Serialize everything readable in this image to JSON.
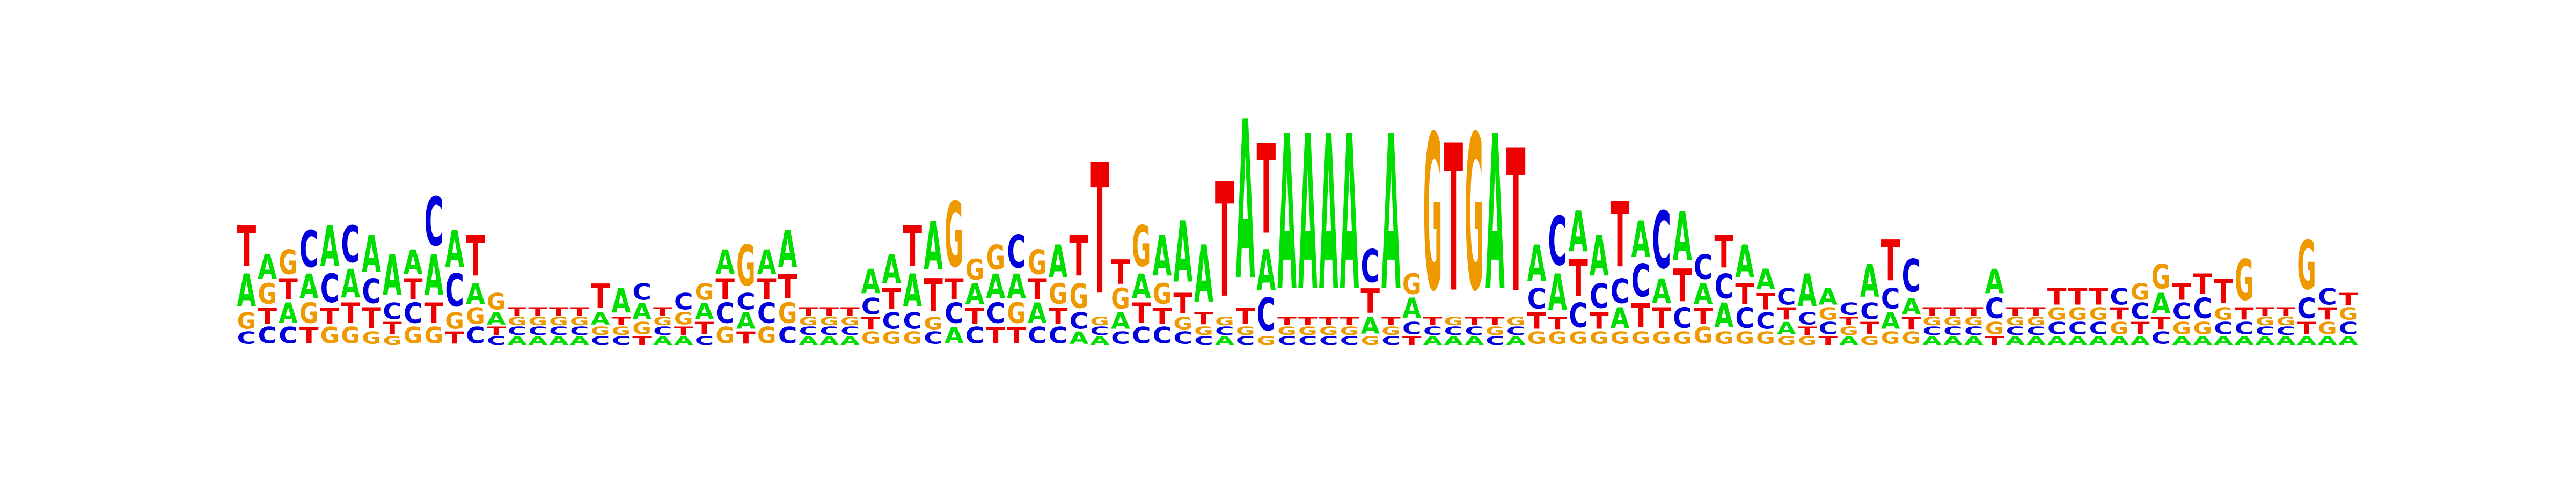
{
  "colors": {
    "A": "#00dd00",
    "C": "#0000dd",
    "G": "#ee9900",
    "T": "#ee0000"
  },
  "positions": [
    [
      [
        "A",
        0.08
      ],
      [
        "C",
        0.03
      ],
      [
        "G",
        0.04
      ],
      [
        "T",
        0.1
      ]
    ],
    [
      [
        "A",
        0.06
      ],
      [
        "C",
        0.04
      ],
      [
        "G",
        0.05
      ],
      [
        "T",
        0.04
      ]
    ],
    [
      [
        "A",
        0.05
      ],
      [
        "C",
        0.04
      ],
      [
        "G",
        0.06
      ],
      [
        "T",
        0.05
      ]
    ],
    [
      [
        "A",
        0.06
      ],
      [
        "C",
        0.09
      ],
      [
        "G",
        0.05
      ],
      [
        "T",
        0.04
      ]
    ],
    [
      [
        "A",
        0.1
      ],
      [
        "C",
        0.07
      ],
      [
        "G",
        0.04
      ],
      [
        "T",
        0.04
      ]
    ],
    [
      [
        "A",
        0.07
      ],
      [
        "C",
        0.09
      ],
      [
        "G",
        0.04
      ],
      [
        "T",
        0.05
      ]
    ],
    [
      [
        "A",
        0.09
      ],
      [
        "C",
        0.06
      ],
      [
        "G",
        0.03
      ],
      [
        "T",
        0.05
      ]
    ],
    [
      [
        "A",
        0.1
      ],
      [
        "C",
        0.04
      ],
      [
        "G",
        0.02
      ],
      [
        "T",
        0.03
      ]
    ],
    [
      [
        "A",
        0.06
      ],
      [
        "C",
        0.05
      ],
      [
        "G",
        0.04
      ],
      [
        "T",
        0.05
      ]
    ],
    [
      [
        "A",
        0.1
      ],
      [
        "C",
        0.12
      ],
      [
        "G",
        0.04
      ],
      [
        "T",
        0.05
      ]
    ],
    [
      [
        "A",
        0.09
      ],
      [
        "C",
        0.08
      ],
      [
        "G",
        0.04
      ],
      [
        "T",
        0.03
      ]
    ],
    [
      [
        "A",
        0.05
      ],
      [
        "C",
        0.04
      ],
      [
        "G",
        0.04
      ],
      [
        "T",
        0.1
      ]
    ],
    [
      [
        "A",
        0.03
      ],
      [
        "C",
        0.02
      ],
      [
        "G",
        0.04
      ],
      [
        "T",
        0.02
      ]
    ],
    [
      [
        "A",
        0.02
      ],
      [
        "C",
        0.02
      ],
      [
        "G",
        0.02
      ],
      [
        "T",
        0.02
      ]
    ],
    [
      [
        "A",
        0.02
      ],
      [
        "C",
        0.02
      ],
      [
        "G",
        0.02
      ],
      [
        "T",
        0.02
      ]
    ],
    [
      [
        "A",
        0.02
      ],
      [
        "C",
        0.02
      ],
      [
        "G",
        0.02
      ],
      [
        "T",
        0.02
      ]
    ],
    [
      [
        "A",
        0.02
      ],
      [
        "C",
        0.02
      ],
      [
        "G",
        0.02
      ],
      [
        "T",
        0.02
      ]
    ],
    [
      [
        "A",
        0.03
      ],
      [
        "C",
        0.02
      ],
      [
        "G",
        0.02
      ],
      [
        "T",
        0.06
      ]
    ],
    [
      [
        "A",
        0.06
      ],
      [
        "C",
        0.02
      ],
      [
        "G",
        0.02
      ],
      [
        "T",
        0.02
      ]
    ],
    [
      [
        "A",
        0.04
      ],
      [
        "C",
        0.04
      ],
      [
        "G",
        0.03
      ],
      [
        "T",
        0.02
      ]
    ],
    [
      [
        "A",
        0.02
      ],
      [
        "C",
        0.02
      ],
      [
        "G",
        0.02
      ],
      [
        "T",
        0.02
      ]
    ],
    [
      [
        "A",
        0.02
      ],
      [
        "C",
        0.04
      ],
      [
        "G",
        0.03
      ],
      [
        "T",
        0.02
      ]
    ],
    [
      [
        "A",
        0.04
      ],
      [
        "C",
        0.02
      ],
      [
        "G",
        0.04
      ],
      [
        "T",
        0.03
      ]
    ],
    [
      [
        "A",
        0.06
      ],
      [
        "C",
        0.05
      ],
      [
        "G",
        0.04
      ],
      [
        "T",
        0.05
      ]
    ],
    [
      [
        "A",
        0.04
      ],
      [
        "C",
        0.04
      ],
      [
        "G",
        0.1
      ],
      [
        "T",
        0.03
      ]
    ],
    [
      [
        "A",
        0.06
      ],
      [
        "C",
        0.05
      ],
      [
        "G",
        0.04
      ],
      [
        "T",
        0.05
      ]
    ],
    [
      [
        "A",
        0.09
      ],
      [
        "C",
        0.04
      ],
      [
        "G",
        0.05
      ],
      [
        "T",
        0.06
      ]
    ],
    [
      [
        "A",
        0.02
      ],
      [
        "C",
        0.02
      ],
      [
        "G",
        0.02
      ],
      [
        "T",
        0.02
      ]
    ],
    [
      [
        "A",
        0.02
      ],
      [
        "C",
        0.02
      ],
      [
        "G",
        0.02
      ],
      [
        "T",
        0.02
      ]
    ],
    [
      [
        "A",
        0.02
      ],
      [
        "C",
        0.02
      ],
      [
        "G",
        0.02
      ],
      [
        "T",
        0.02
      ]
    ],
    [
      [
        "A",
        0.06
      ],
      [
        "C",
        0.04
      ],
      [
        "G",
        0.03
      ],
      [
        "T",
        0.03
      ]
    ],
    [
      [
        "A",
        0.07
      ],
      [
        "C",
        0.04
      ],
      [
        "G",
        0.03
      ],
      [
        "T",
        0.05
      ]
    ],
    [
      [
        "A",
        0.08
      ],
      [
        "C",
        0.04
      ],
      [
        "G",
        0.03
      ],
      [
        "T",
        0.1
      ]
    ],
    [
      [
        "A",
        0.12
      ],
      [
        "C",
        0.03
      ],
      [
        "G",
        0.03
      ],
      [
        "T",
        0.08
      ]
    ],
    [
      [
        "A",
        0.04
      ],
      [
        "C",
        0.05
      ],
      [
        "G",
        0.16
      ],
      [
        "T",
        0.05
      ]
    ],
    [
      [
        "A",
        0.05
      ],
      [
        "C",
        0.04
      ],
      [
        "G",
        0.05
      ],
      [
        "T",
        0.04
      ]
    ],
    [
      [
        "A",
        0.06
      ],
      [
        "C",
        0.05
      ],
      [
        "G",
        0.06
      ],
      [
        "T",
        0.04
      ]
    ],
    [
      [
        "A",
        0.06
      ],
      [
        "C",
        0.08
      ],
      [
        "G",
        0.05
      ],
      [
        "T",
        0.04
      ]
    ],
    [
      [
        "A",
        0.05
      ],
      [
        "C",
        0.04
      ],
      [
        "G",
        0.06
      ],
      [
        "T",
        0.05
      ]
    ],
    [
      [
        "A",
        0.08
      ],
      [
        "C",
        0.04
      ],
      [
        "G",
        0.05
      ],
      [
        "T",
        0.04
      ]
    ],
    [
      [
        "A",
        0.03
      ],
      [
        "C",
        0.04
      ],
      [
        "G",
        0.06
      ],
      [
        "T",
        0.1
      ]
    ],
    [
      [
        "A",
        0.02
      ],
      [
        "C",
        0.02
      ],
      [
        "G",
        0.02
      ],
      [
        "T",
        0.32
      ]
    ],
    [
      [
        "A",
        0.04
      ],
      [
        "C",
        0.03
      ],
      [
        "G",
        0.05
      ],
      [
        "T",
        0.06
      ]
    ],
    [
      [
        "A",
        0.06
      ],
      [
        "C",
        0.04
      ],
      [
        "G",
        0.1
      ],
      [
        "T",
        0.05
      ]
    ],
    [
      [
        "A",
        0.1
      ],
      [
        "C",
        0.04
      ],
      [
        "G",
        0.05
      ],
      [
        "T",
        0.04
      ]
    ],
    [
      [
        "A",
        0.15
      ],
      [
        "C",
        0.03
      ],
      [
        "G",
        0.03
      ],
      [
        "T",
        0.05
      ]
    ],
    [
      [
        "A",
        0.14
      ],
      [
        "C",
        0.02
      ],
      [
        "G",
        0.02
      ],
      [
        "T",
        0.03
      ]
    ],
    [
      [
        "A",
        0.02
      ],
      [
        "C",
        0.02
      ],
      [
        "G",
        0.02
      ],
      [
        "T",
        0.28
      ]
    ],
    [
      [
        "A",
        0.39
      ],
      [
        "C",
        0.02
      ],
      [
        "G",
        0.02
      ],
      [
        "T",
        0.04
      ]
    ],
    [
      [
        "A",
        0.1
      ],
      [
        "C",
        0.08
      ],
      [
        "G",
        0.02
      ],
      [
        "T",
        0.22
      ]
    ],
    [
      [
        "A",
        0.38
      ],
      [
        "C",
        0.02
      ],
      [
        "G",
        0.02
      ],
      [
        "T",
        0.02
      ]
    ],
    [
      [
        "A",
        0.38
      ],
      [
        "C",
        0.02
      ],
      [
        "G",
        0.02
      ],
      [
        "T",
        0.02
      ]
    ],
    [
      [
        "A",
        0.38
      ],
      [
        "C",
        0.02
      ],
      [
        "G",
        0.02
      ],
      [
        "T",
        0.02
      ]
    ],
    [
      [
        "A",
        0.38
      ],
      [
        "C",
        0.02
      ],
      [
        "G",
        0.02
      ],
      [
        "T",
        0.02
      ]
    ],
    [
      [
        "A",
        0.04
      ],
      [
        "C",
        0.08
      ],
      [
        "G",
        0.02
      ],
      [
        "T",
        0.06
      ]
    ],
    [
      [
        "A",
        0.38
      ],
      [
        "C",
        0.02
      ],
      [
        "G",
        0.02
      ],
      [
        "T",
        0.02
      ]
    ],
    [
      [
        "A",
        0.05
      ],
      [
        "C",
        0.03
      ],
      [
        "G",
        0.05
      ],
      [
        "T",
        0.02
      ]
    ],
    [
      [
        "A",
        0.02
      ],
      [
        "C",
        0.02
      ],
      [
        "G",
        0.38
      ],
      [
        "T",
        0.02
      ]
    ],
    [
      [
        "A",
        0.02
      ],
      [
        "C",
        0.02
      ],
      [
        "G",
        0.02
      ],
      [
        "T",
        0.36
      ]
    ],
    [
      [
        "A",
        0.02
      ],
      [
        "C",
        0.02
      ],
      [
        "G",
        0.38
      ],
      [
        "T",
        0.02
      ]
    ],
    [
      [
        "A",
        0.38
      ],
      [
        "C",
        0.02
      ],
      [
        "G",
        0.02
      ],
      [
        "T",
        0.02
      ]
    ],
    [
      [
        "A",
        0.02
      ],
      [
        "C",
        0.02
      ],
      [
        "G",
        0.02
      ],
      [
        "T",
        0.35
      ]
    ],
    [
      [
        "A",
        0.09
      ],
      [
        "C",
        0.05
      ],
      [
        "G",
        0.03
      ],
      [
        "T",
        0.04
      ]
    ],
    [
      [
        "A",
        0.09
      ],
      [
        "C",
        0.12
      ],
      [
        "G",
        0.03
      ],
      [
        "T",
        0.03
      ]
    ],
    [
      [
        "A",
        0.1
      ],
      [
        "C",
        0.06
      ],
      [
        "G",
        0.03
      ],
      [
        "T",
        0.09
      ]
    ],
    [
      [
        "A",
        0.1
      ],
      [
        "C",
        0.06
      ],
      [
        "G",
        0.03
      ],
      [
        "T",
        0.04
      ]
    ],
    [
      [
        "A",
        0.05
      ],
      [
        "C",
        0.06
      ],
      [
        "G",
        0.03
      ],
      [
        "T",
        0.16
      ]
    ],
    [
      [
        "A",
        0.09
      ],
      [
        "C",
        0.08
      ],
      [
        "G",
        0.03
      ],
      [
        "T",
        0.06
      ]
    ],
    [
      [
        "A",
        0.06
      ],
      [
        "C",
        0.14
      ],
      [
        "G",
        0.03
      ],
      [
        "T",
        0.05
      ]
    ],
    [
      [
        "A",
        0.12
      ],
      [
        "C",
        0.05
      ],
      [
        "G",
        0.03
      ],
      [
        "T",
        0.08
      ]
    ],
    [
      [
        "A",
        0.05
      ],
      [
        "C",
        0.06
      ],
      [
        "G",
        0.04
      ],
      [
        "T",
        0.04
      ]
    ],
    [
      [
        "A",
        0.06
      ],
      [
        "C",
        0.06
      ],
      [
        "G",
        0.03
      ],
      [
        "T",
        0.08
      ]
    ],
    [
      [
        "A",
        0.08
      ],
      [
        "C",
        0.05
      ],
      [
        "G",
        0.03
      ],
      [
        "T",
        0.05
      ]
    ],
    [
      [
        "A",
        0.05
      ],
      [
        "C",
        0.04
      ],
      [
        "G",
        0.03
      ],
      [
        "T",
        0.04
      ]
    ],
    [
      [
        "A",
        0.03
      ],
      [
        "C",
        0.04
      ],
      [
        "G",
        0.02
      ],
      [
        "T",
        0.03
      ]
    ],
    [
      [
        "A",
        0.08
      ],
      [
        "C",
        0.03
      ],
      [
        "G",
        0.02
      ],
      [
        "T",
        0.02
      ]
    ],
    [
      [
        "A",
        0.04
      ],
      [
        "C",
        0.03
      ],
      [
        "G",
        0.03
      ],
      [
        "T",
        0.02
      ]
    ],
    [
      [
        "A",
        0.02
      ],
      [
        "C",
        0.03
      ],
      [
        "G",
        0.02
      ],
      [
        "T",
        0.02
      ]
    ],
    [
      [
        "A",
        0.08
      ],
      [
        "C",
        0.04
      ],
      [
        "G",
        0.02
      ],
      [
        "T",
        0.03
      ]
    ],
    [
      [
        "A",
        0.04
      ],
      [
        "C",
        0.05
      ],
      [
        "G",
        0.03
      ],
      [
        "T",
        0.1
      ]
    ],
    [
      [
        "A",
        0.04
      ],
      [
        "C",
        0.08
      ],
      [
        "G",
        0.03
      ],
      [
        "T",
        0.03
      ]
    ],
    [
      [
        "A",
        0.02
      ],
      [
        "C",
        0.02
      ],
      [
        "G",
        0.02
      ],
      [
        "T",
        0.02
      ]
    ],
    [
      [
        "A",
        0.02
      ],
      [
        "C",
        0.02
      ],
      [
        "G",
        0.02
      ],
      [
        "T",
        0.02
      ]
    ],
    [
      [
        "A",
        0.02
      ],
      [
        "C",
        0.02
      ],
      [
        "G",
        0.02
      ],
      [
        "T",
        0.02
      ]
    ],
    [
      [
        "A",
        0.06
      ],
      [
        "C",
        0.05
      ],
      [
        "G",
        0.03
      ],
      [
        "T",
        0.02
      ]
    ],
    [
      [
        "A",
        0.02
      ],
      [
        "C",
        0.02
      ],
      [
        "G",
        0.02
      ],
      [
        "T",
        0.02
      ]
    ],
    [
      [
        "A",
        0.02
      ],
      [
        "C",
        0.02
      ],
      [
        "G",
        0.02
      ],
      [
        "T",
        0.02
      ]
    ],
    [
      [
        "A",
        0.02
      ],
      [
        "C",
        0.03
      ],
      [
        "G",
        0.03
      ],
      [
        "T",
        0.04
      ]
    ],
    [
      [
        "A",
        0.02
      ],
      [
        "C",
        0.03
      ],
      [
        "G",
        0.03
      ],
      [
        "T",
        0.04
      ]
    ],
    [
      [
        "A",
        0.02
      ],
      [
        "C",
        0.03
      ],
      [
        "G",
        0.03
      ],
      [
        "T",
        0.04
      ]
    ],
    [
      [
        "A",
        0.02
      ],
      [
        "C",
        0.04
      ],
      [
        "G",
        0.03
      ],
      [
        "T",
        0.03
      ]
    ],
    [
      [
        "A",
        0.02
      ],
      [
        "C",
        0.04
      ],
      [
        "G",
        0.04
      ],
      [
        "T",
        0.03
      ]
    ],
    [
      [
        "A",
        0.05
      ],
      [
        "C",
        0.03
      ],
      [
        "G",
        0.06
      ],
      [
        "T",
        0.03
      ]
    ],
    [
      [
        "A",
        0.02
      ],
      [
        "C",
        0.04
      ],
      [
        "G",
        0.03
      ],
      [
        "T",
        0.04
      ]
    ],
    [
      [
        "A",
        0.02
      ],
      [
        "C",
        0.05
      ],
      [
        "G",
        0.03
      ],
      [
        "T",
        0.05
      ]
    ],
    [
      [
        "A",
        0.02
      ],
      [
        "C",
        0.03
      ],
      [
        "G",
        0.03
      ],
      [
        "T",
        0.06
      ]
    ],
    [
      [
        "A",
        0.02
      ],
      [
        "C",
        0.03
      ],
      [
        "G",
        0.1
      ],
      [
        "T",
        0.03
      ]
    ],
    [
      [
        "A",
        0.02
      ],
      [
        "C",
        0.02
      ],
      [
        "G",
        0.02
      ],
      [
        "T",
        0.02
      ]
    ],
    [
      [
        "A",
        0.02
      ],
      [
        "C",
        0.02
      ],
      [
        "G",
        0.02
      ],
      [
        "T",
        0.02
      ]
    ],
    [
      [
        "A",
        0.02
      ],
      [
        "C",
        0.05
      ],
      [
        "G",
        0.12
      ],
      [
        "T",
        0.03
      ]
    ],
    [
      [
        "A",
        0.02
      ],
      [
        "C",
        0.04
      ],
      [
        "G",
        0.03
      ],
      [
        "T",
        0.03
      ]
    ],
    [
      [
        "A",
        0.02
      ],
      [
        "C",
        0.03
      ],
      [
        "G",
        0.03
      ],
      [
        "T",
        0.03
      ]
    ]
  ]
}
